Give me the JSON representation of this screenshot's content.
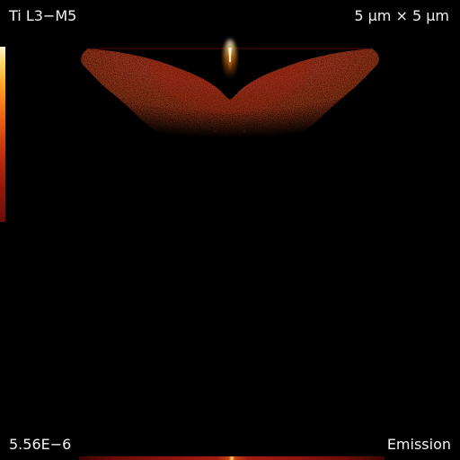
{
  "overlay": {
    "title": "Ti L3−M5",
    "scale": "5 μm × 5 μm",
    "max_value": "5.56E−6",
    "mode": "Emission"
  },
  "colors": {
    "background": "#000000",
    "deep_red": "#5a0906",
    "mid_red": "#8d120c",
    "hot_orange": "#ff9a28",
    "bright_yellow": "#fff1a8"
  },
  "icons": {
    "colorbar": "heat-colorbar-icon"
  }
}
